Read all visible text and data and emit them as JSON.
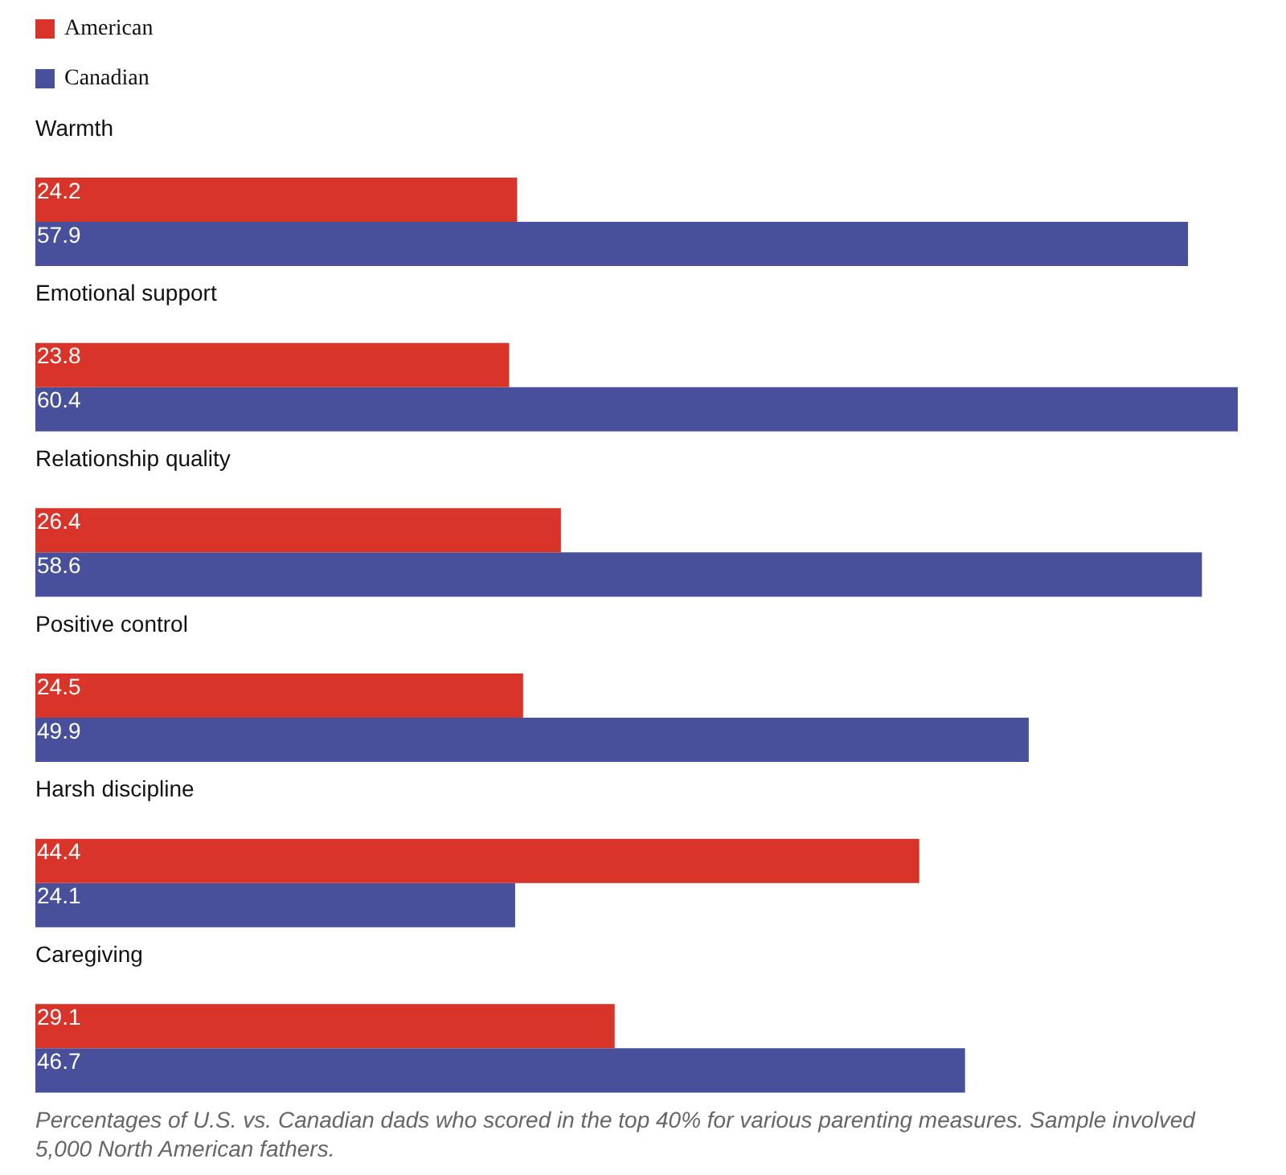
{
  "chart_data": {
    "type": "bar",
    "orientation": "horizontal",
    "categories": [
      "Warmth",
      "Emotional support",
      "Relationship quality",
      "Positive control",
      "Harsh discipline",
      "Caregiving"
    ],
    "series": [
      {
        "name": "American",
        "color": "#d93429",
        "values": [
          24.2,
          23.8,
          26.4,
          24.5,
          44.4,
          29.1
        ]
      },
      {
        "name": "Canadian",
        "color": "#48509c",
        "values": [
          57.9,
          60.4,
          58.6,
          49.9,
          24.1,
          46.7
        ]
      }
    ],
    "data_labels": true,
    "legend": "top left",
    "annotations": [
      "Percentages of U.S. vs. Canadian dads who scored in the top 40% for various parenting measures. Sample involved 5,000 North American fathers."
    ]
  }
}
